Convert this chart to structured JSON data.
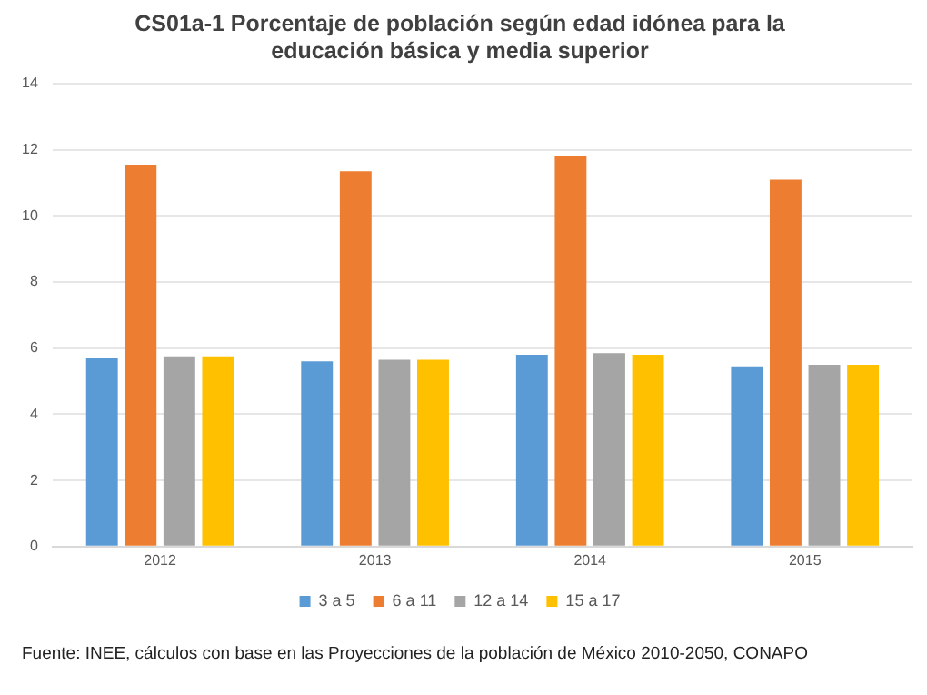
{
  "chart_data": {
    "type": "bar",
    "title": "CS01a-1 Porcentaje de población según edad idónea para la educación básica y media superior",
    "categories": [
      "2012",
      "2013",
      "2014",
      "2015"
    ],
    "series": [
      {
        "name": "3 a 5",
        "color": "#5b9bd5",
        "values": [
          5.7,
          5.6,
          5.8,
          5.45
        ]
      },
      {
        "name": "6 a 11",
        "color": "#ed7d31",
        "values": [
          11.55,
          11.35,
          11.8,
          11.1
        ]
      },
      {
        "name": "12 a 14",
        "color": "#a5a5a5",
        "values": [
          5.75,
          5.65,
          5.85,
          5.5
        ]
      },
      {
        "name": "15 a 17",
        "color": "#ffc000",
        "values": [
          5.75,
          5.65,
          5.8,
          5.5
        ]
      }
    ],
    "ylim": [
      0,
      14
    ],
    "yticks": [
      0,
      2,
      4,
      6,
      8,
      10,
      12,
      14
    ],
    "grid": "y",
    "legend": "bottom",
    "annotations": [
      "Fuente: INEE, cálculos con base en las Proyecciones de la población de México 2010-2050,  CONAPO"
    ]
  }
}
